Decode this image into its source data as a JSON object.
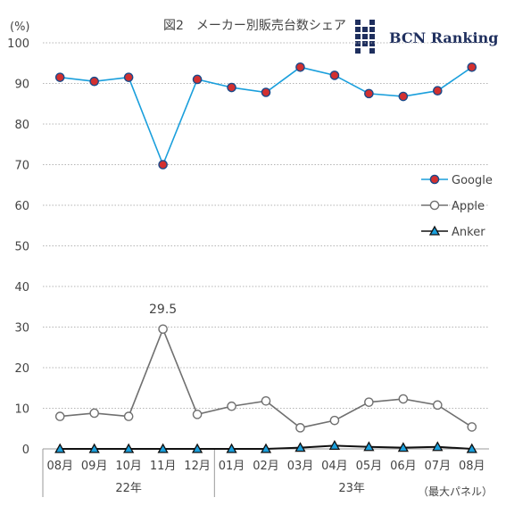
{
  "chart_data": {
    "type": "line",
    "title": "図2　メーカー別販売台数シェア",
    "unit_label": "(%)",
    "brand": "BCN Ranking",
    "categories": [
      "08月",
      "09月",
      "10月",
      "11月",
      "12月",
      "01月",
      "02月",
      "03月",
      "04月",
      "05月",
      "06月",
      "07月",
      "08月"
    ],
    "year_groups": [
      {
        "label": "22年",
        "span": [
          0,
          4
        ]
      },
      {
        "label": "23年",
        "span": [
          5,
          12
        ]
      }
    ],
    "note": "（最大パネル）",
    "ylim": [
      0,
      100
    ],
    "yticks": [
      0,
      10,
      20,
      30,
      40,
      50,
      60,
      70,
      80,
      90,
      100
    ],
    "grid": true,
    "legend_position": "right",
    "series": [
      {
        "name": "Google",
        "values": [
          91.5,
          90.5,
          91.5,
          70.0,
          91.0,
          89.0,
          87.8,
          94.0,
          92.0,
          87.5,
          86.8,
          88.2,
          94.0
        ],
        "color": "#1a9fdc",
        "marker": "circle",
        "marker_fill": "#d33030",
        "marker_edge": "#1a4a8a"
      },
      {
        "name": "Apple",
        "values": [
          8.0,
          8.8,
          8.0,
          29.5,
          8.5,
          10.5,
          11.8,
          5.2,
          7.0,
          11.5,
          12.3,
          10.8,
          5.4
        ],
        "color": "#707070",
        "marker": "circle",
        "marker_fill": "#ffffff",
        "marker_edge": "#707070"
      },
      {
        "name": "Anker",
        "values": [
          0.0,
          0.0,
          0.0,
          0.0,
          0.0,
          0.0,
          0.0,
          0.3,
          0.8,
          0.5,
          0.3,
          0.5,
          0.0
        ],
        "color": "#111111",
        "marker": "triangle",
        "marker_fill": "#1a9fdc",
        "marker_edge": "#111111"
      }
    ],
    "annotations": [
      {
        "series": "Apple",
        "index": 3,
        "text": "29.5"
      }
    ]
  }
}
